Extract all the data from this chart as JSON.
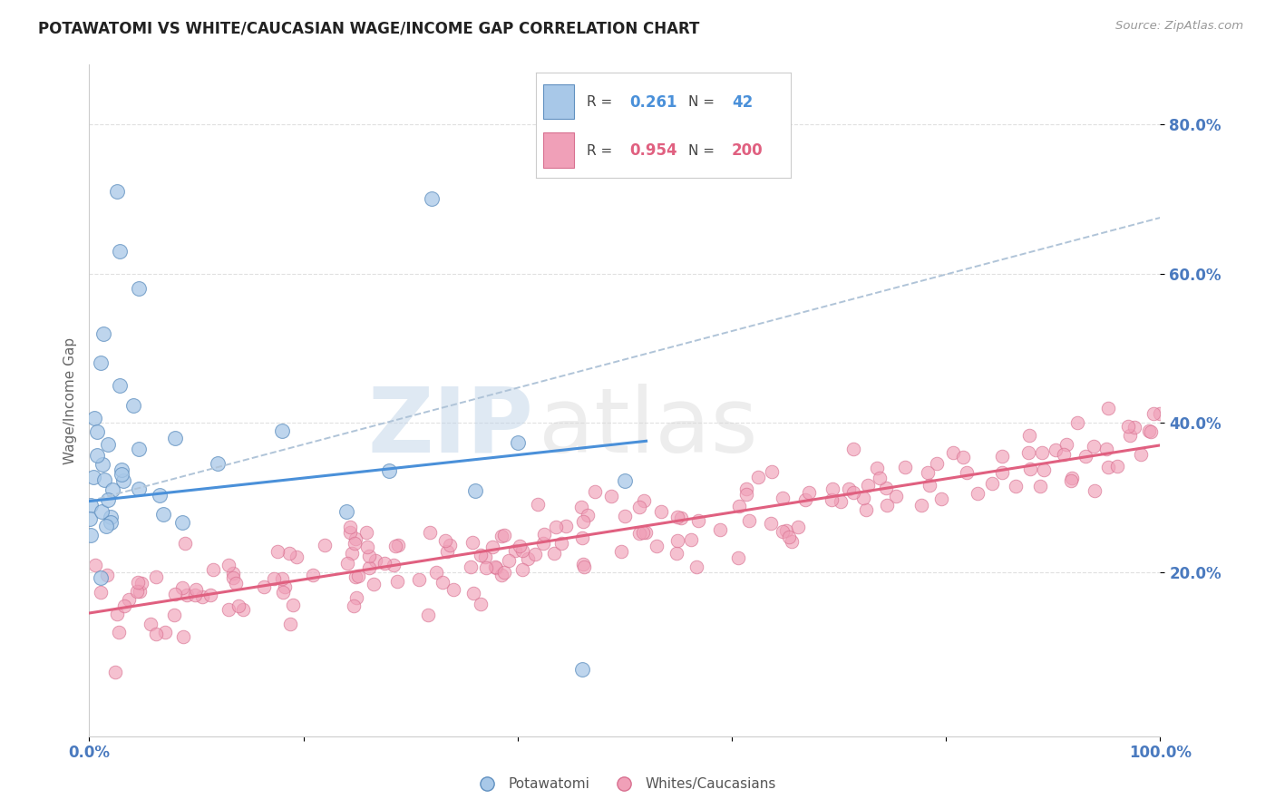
{
  "title": "POTAWATOMI VS WHITE/CAUCASIAN WAGE/INCOME GAP CORRELATION CHART",
  "source": "Source: ZipAtlas.com",
  "ylabel": "Wage/Income Gap",
  "xlim": [
    0.0,
    1.0
  ],
  "ylim": [
    -0.02,
    0.88
  ],
  "yticks": [
    0.2,
    0.4,
    0.6,
    0.8
  ],
  "ytick_labels": [
    "20.0%",
    "40.0%",
    "60.0%",
    "80.0%"
  ],
  "blue_line_color": "#4a90d9",
  "pink_line_color": "#e06080",
  "blue_dashed_color": "#b0c4d8",
  "title_color": "#222222",
  "axis_label_color": "#4a7abf",
  "grid_color": "#e0e0e0",
  "blue_scatter_color": "#a8c8e8",
  "pink_scatter_color": "#f0a0b8",
  "blue_scatter_edge": "#6090c0",
  "pink_scatter_edge": "#d87090",
  "blue_R": "0.261",
  "blue_N": "42",
  "pink_R": "0.954",
  "pink_N": "200",
  "blue_intercept": 0.295,
  "blue_slope": 0.155,
  "pink_intercept": 0.145,
  "pink_slope": 0.225,
  "blue_dashed_intercept": 0.295,
  "blue_dashed_slope": 0.38,
  "watermark_zip": "ZIP",
  "watermark_atlas": "atlas",
  "legend_box_color": "#f8f8f8",
  "legend_border_color": "#cccccc"
}
